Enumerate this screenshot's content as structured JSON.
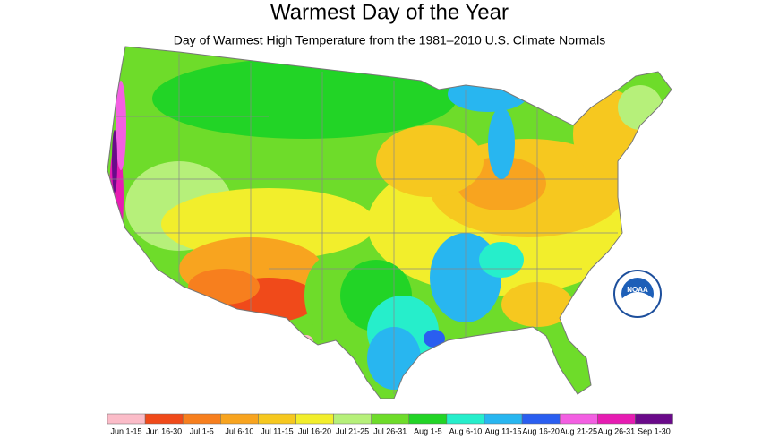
{
  "title": "Warmest Day of the Year",
  "subtitle": "Day of Warmest High Temperature from the 1981–2010 U.S. Climate Normals",
  "logo_text": "NOAA",
  "legend": [
    {
      "label": "Jun 1-15",
      "color": "#fbbcc8"
    },
    {
      "label": "Jun 16-30",
      "color": "#f04a1a"
    },
    {
      "label": "Jul 1-5",
      "color": "#f77f1e"
    },
    {
      "label": "Jul 6-10",
      "color": "#f8a41f"
    },
    {
      "label": "Jul 11-15",
      "color": "#f6c81f"
    },
    {
      "label": "Jul 16-20",
      "color": "#f2ee2c"
    },
    {
      "label": "Jul 21-25",
      "color": "#b6f07a"
    },
    {
      "label": "Jul 26-31",
      "color": "#6edc2a"
    },
    {
      "label": "Aug 1-5",
      "color": "#22d426"
    },
    {
      "label": "Aug 6-10",
      "color": "#26eecb"
    },
    {
      "label": "Aug 11-15",
      "color": "#28b6f0"
    },
    {
      "label": "Aug 16-20",
      "color": "#2a5ef0"
    },
    {
      "label": "Aug 21-25",
      "color": "#f35fe2"
    },
    {
      "label": "Aug 26-31",
      "color": "#e61cb2"
    },
    {
      "label": "Sep 1-30",
      "color": "#6a0a8a"
    }
  ]
}
